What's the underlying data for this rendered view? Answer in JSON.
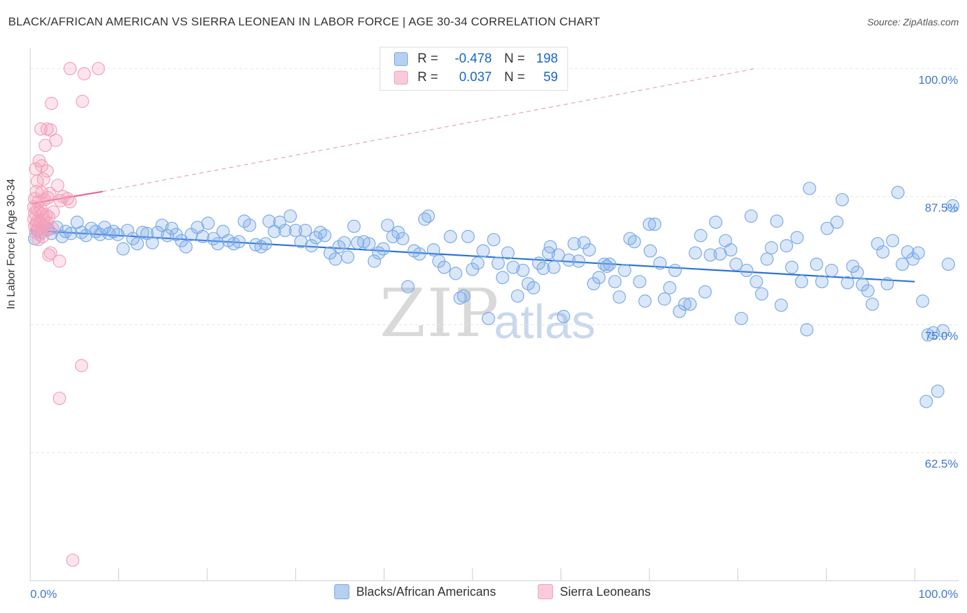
{
  "title": "BLACK/AFRICAN AMERICAN VS SIERRA LEONEAN IN LABOR FORCE | AGE 30-34 CORRELATION CHART",
  "source": "Source: ZipAtlas.com",
  "watermark": {
    "zip": "ZIP",
    "atlas": "atlas"
  },
  "stats": [
    {
      "r_label": "R =",
      "r_value": "-0.478",
      "n_label": "N =",
      "n_value": "198",
      "color": "#7aaae8"
    },
    {
      "r_label": "R =",
      "r_value": "0.037",
      "n_label": "N =",
      "n_value": "59",
      "color": "#f4a0bb"
    }
  ],
  "legend": [
    {
      "label": "Blacks/African Americans",
      "color": "#7aaae8"
    },
    {
      "label": "Sierra Leoneans",
      "color": "#f4a0bb"
    }
  ],
  "chart_data": {
    "type": "scatter",
    "ylabel": "In Labor Force | Age 30-34",
    "xlim": [
      0,
      100
    ],
    "ylim": [
      50,
      102
    ],
    "x_tick_labels": [
      "0.0%",
      "100.0%"
    ],
    "y_tick_values": [
      62.5,
      75.0,
      87.5,
      100.0
    ],
    "y_tick_labels": [
      "62.5%",
      "75.0%",
      "87.5%",
      "100.0%"
    ],
    "grid": true,
    "series": [
      {
        "name": "Blacks/African Americans",
        "color": "#7aaae8",
        "trend": {
          "x": [
            0,
            100
          ],
          "y": [
            84.2,
            79.2
          ],
          "style": "solid",
          "color": "#2a72d4"
        },
        "points": [
          [
            0.5,
            83.4
          ],
          [
            0.8,
            84.2
          ],
          [
            1.2,
            84.0
          ],
          [
            1.5,
            84.6
          ],
          [
            2.0,
            84.3
          ],
          [
            2.4,
            83.9
          ],
          [
            3.0,
            84.5
          ],
          [
            3.6,
            83.6
          ],
          [
            4.0,
            84.1
          ],
          [
            4.6,
            83.9
          ],
          [
            5.3,
            85.0
          ],
          [
            5.8,
            84.0
          ],
          [
            6.3,
            83.7
          ],
          [
            6.9,
            84.4
          ],
          [
            7.4,
            84.1
          ],
          [
            7.9,
            83.8
          ],
          [
            8.4,
            84.5
          ],
          [
            8.9,
            83.9
          ],
          [
            9.4,
            84.1
          ],
          [
            9.9,
            83.8
          ],
          [
            10.5,
            82.4
          ],
          [
            11.0,
            84.2
          ],
          [
            11.6,
            83.4
          ],
          [
            12.1,
            82.9
          ],
          [
            12.7,
            84.0
          ],
          [
            13.2,
            83.9
          ],
          [
            13.8,
            83.0
          ],
          [
            14.4,
            84.0
          ],
          [
            14.9,
            84.7
          ],
          [
            15.5,
            83.7
          ],
          [
            16.0,
            84.4
          ],
          [
            16.5,
            83.8
          ],
          [
            17.1,
            83.2
          ],
          [
            17.6,
            82.6
          ],
          [
            18.2,
            83.8
          ],
          [
            18.9,
            84.5
          ],
          [
            19.5,
            83.6
          ],
          [
            20.1,
            84.9
          ],
          [
            20.7,
            83.4
          ],
          [
            21.2,
            82.9
          ],
          [
            21.8,
            84.1
          ],
          [
            22.4,
            83.2
          ],
          [
            23.0,
            82.9
          ],
          [
            23.6,
            83.1
          ],
          [
            24.2,
            85.1
          ],
          [
            24.8,
            84.7
          ],
          [
            25.5,
            82.8
          ],
          [
            26.1,
            82.6
          ],
          [
            26.6,
            82.9
          ],
          [
            27.0,
            85.1
          ],
          [
            27.6,
            84.1
          ],
          [
            28.2,
            85.0
          ],
          [
            28.8,
            84.2
          ],
          [
            29.4,
            85.6
          ],
          [
            30.0,
            84.2
          ],
          [
            30.6,
            83.1
          ],
          [
            31.1,
            84.2
          ],
          [
            31.8,
            82.7
          ],
          [
            32.3,
            83.5
          ],
          [
            32.8,
            84.0
          ],
          [
            33.3,
            83.7
          ],
          [
            33.9,
            82.0
          ],
          [
            34.5,
            81.4
          ],
          [
            34.9,
            82.6
          ],
          [
            35.5,
            83.0
          ],
          [
            35.9,
            81.6
          ],
          [
            36.6,
            84.6
          ],
          [
            37.0,
            83.0
          ],
          [
            37.7,
            83.1
          ],
          [
            38.3,
            82.9
          ],
          [
            38.9,
            81.2
          ],
          [
            39.4,
            82.0
          ],
          [
            39.9,
            82.4
          ],
          [
            40.4,
            84.7
          ],
          [
            41.0,
            83.6
          ],
          [
            41.6,
            84.0
          ],
          [
            42.1,
            83.4
          ],
          [
            42.7,
            78.7
          ],
          [
            43.4,
            82.2
          ],
          [
            44.0,
            81.9
          ],
          [
            44.6,
            85.3
          ],
          [
            45.0,
            85.6
          ],
          [
            45.6,
            82.3
          ],
          [
            46.2,
            81.2
          ],
          [
            46.8,
            80.6
          ],
          [
            47.5,
            83.6
          ],
          [
            48.1,
            80.0
          ],
          [
            48.6,
            77.6
          ],
          [
            49.0,
            77.8
          ],
          [
            49.5,
            83.6
          ],
          [
            50.0,
            80.4
          ],
          [
            50.6,
            81.0
          ],
          [
            51.2,
            82.2
          ],
          [
            51.8,
            75.6
          ],
          [
            52.4,
            83.3
          ],
          [
            52.9,
            81.0
          ],
          [
            53.4,
            79.6
          ],
          [
            54.0,
            82.0
          ],
          [
            54.6,
            80.6
          ],
          [
            55.1,
            77.8
          ],
          [
            55.7,
            80.3
          ],
          [
            56.3,
            79.0
          ],
          [
            56.9,
            78.6
          ],
          [
            57.5,
            81.0
          ],
          [
            58.0,
            80.5
          ],
          [
            58.6,
            82.0
          ],
          [
            59.2,
            80.6
          ],
          [
            59.7,
            81.8
          ],
          [
            60.3,
            75.8
          ],
          [
            60.9,
            81.3
          ],
          [
            61.5,
            82.9
          ],
          [
            62.0,
            81.2
          ],
          [
            62.6,
            83.0
          ],
          [
            63.2,
            82.3
          ],
          [
            63.7,
            79.0
          ],
          [
            64.3,
            79.6
          ],
          [
            64.9,
            80.9
          ],
          [
            65.5,
            80.9
          ],
          [
            66.1,
            79.2
          ],
          [
            66.6,
            77.7
          ],
          [
            67.2,
            80.3
          ],
          [
            67.8,
            83.4
          ],
          [
            68.3,
            83.1
          ],
          [
            68.9,
            79.2
          ],
          [
            69.5,
            77.3
          ],
          [
            70.1,
            82.2
          ],
          [
            70.6,
            84.8
          ],
          [
            71.2,
            81.0
          ],
          [
            71.7,
            77.5
          ],
          [
            72.3,
            78.6
          ],
          [
            72.9,
            80.3
          ],
          [
            73.4,
            76.3
          ],
          [
            74.0,
            77.0
          ],
          [
            74.6,
            77.0
          ],
          [
            75.2,
            82.0
          ],
          [
            75.8,
            83.7
          ],
          [
            76.3,
            78.2
          ],
          [
            76.9,
            81.8
          ],
          [
            77.5,
            85.0
          ],
          [
            78.0,
            81.9
          ],
          [
            78.6,
            83.2
          ],
          [
            79.2,
            82.3
          ],
          [
            79.8,
            80.9
          ],
          [
            80.4,
            75.6
          ],
          [
            81.0,
            80.3
          ],
          [
            81.5,
            85.6
          ],
          [
            82.1,
            79.2
          ],
          [
            82.7,
            78.0
          ],
          [
            83.3,
            81.4
          ],
          [
            83.8,
            82.5
          ],
          [
            84.4,
            85.1
          ],
          [
            84.9,
            76.9
          ],
          [
            85.5,
            82.7
          ],
          [
            86.1,
            80.6
          ],
          [
            86.7,
            83.5
          ],
          [
            87.2,
            79.2
          ],
          [
            87.8,
            74.5
          ],
          [
            88.1,
            88.3
          ],
          [
            88.9,
            80.9
          ],
          [
            89.5,
            79.2
          ],
          [
            90.1,
            84.4
          ],
          [
            90.6,
            80.3
          ],
          [
            91.2,
            85.0
          ],
          [
            91.8,
            87.2
          ],
          [
            92.4,
            79.1
          ],
          [
            93.0,
            80.7
          ],
          [
            93.5,
            80.1
          ],
          [
            94.1,
            78.9
          ],
          [
            94.7,
            78.3
          ],
          [
            95.2,
            77.0
          ],
          [
            95.8,
            82.9
          ],
          [
            96.4,
            82.1
          ],
          [
            96.9,
            79.0
          ],
          [
            97.5,
            83.2
          ],
          [
            98.1,
            87.9
          ],
          [
            98.6,
            80.9
          ],
          [
            99.2,
            82.1
          ],
          [
            99.8,
            81.4
          ],
          [
            100.4,
            82.0
          ],
          [
            100.9,
            77.3
          ],
          [
            101.5,
            74.0
          ],
          [
            102.1,
            74.2
          ],
          [
            102.6,
            68.5
          ],
          [
            103.2,
            74.4
          ],
          [
            103.8,
            80.9
          ],
          [
            104.3,
            86.6
          ],
          [
            101.3,
            67.5
          ],
          [
            65.2,
            80.7
          ],
          [
            70.0,
            84.8
          ],
          [
            58.8,
            82.6
          ]
        ]
      },
      {
        "name": "Sierra Leoneans",
        "color": "#f4a0bb",
        "trend": {
          "x": [
            0,
            8.2
          ],
          "y": [
            86.8,
            88.0
          ],
          "style": "solid",
          "color": "#e8668f"
        },
        "trend_extension": {
          "x": [
            8.2,
            82.0
          ],
          "y": [
            88.0,
            100.0
          ],
          "style": "dashed",
          "color": "#eaa0b6"
        },
        "points": [
          [
            4.5,
            100.0
          ],
          [
            7.7,
            100.0
          ],
          [
            6.1,
            99.5
          ],
          [
            2.4,
            96.6
          ],
          [
            5.9,
            96.8
          ],
          [
            1.2,
            94.1
          ],
          [
            1.9,
            94.1
          ],
          [
            2.3,
            94.0
          ],
          [
            2.9,
            93.0
          ],
          [
            1.7,
            92.5
          ],
          [
            1.0,
            91.0
          ],
          [
            1.3,
            90.5
          ],
          [
            0.6,
            90.2
          ],
          [
            1.9,
            90.0
          ],
          [
            0.8,
            89.0
          ],
          [
            1.5,
            89.2
          ],
          [
            0.7,
            88.0
          ],
          [
            1.3,
            87.9
          ],
          [
            2.2,
            87.8
          ],
          [
            3.1,
            88.6
          ],
          [
            0.5,
            87.3
          ],
          [
            0.9,
            87.0
          ],
          [
            1.6,
            87.2
          ],
          [
            2.0,
            87.4
          ],
          [
            3.4,
            87.1
          ],
          [
            4.2,
            87.3
          ],
          [
            4.5,
            87.0
          ],
          [
            0.4,
            86.5
          ],
          [
            0.8,
            86.2
          ],
          [
            1.2,
            86.3
          ],
          [
            0.5,
            85.9
          ],
          [
            1.0,
            86.0
          ],
          [
            1.4,
            85.8
          ],
          [
            1.8,
            85.7
          ],
          [
            2.1,
            85.5
          ],
          [
            0.4,
            85.3
          ],
          [
            0.8,
            85.1
          ],
          [
            1.1,
            85.0
          ],
          [
            1.5,
            85.2
          ],
          [
            1.9,
            84.9
          ],
          [
            0.5,
            84.6
          ],
          [
            0.9,
            84.5
          ],
          [
            1.3,
            84.4
          ],
          [
            1.7,
            84.2
          ],
          [
            0.6,
            84.0
          ],
          [
            1.0,
            83.8
          ],
          [
            1.4,
            83.6
          ],
          [
            0.9,
            83.3
          ],
          [
            2.3,
            82.0
          ],
          [
            2.1,
            81.8
          ],
          [
            3.3,
            81.2
          ],
          [
            5.8,
            71.0
          ],
          [
            3.3,
            67.8
          ],
          [
            4.8,
            52.0
          ],
          [
            3.7,
            87.5
          ],
          [
            2.6,
            86.0
          ],
          [
            0.7,
            84.8
          ],
          [
            1.6,
            84.7
          ],
          [
            2.5,
            84.4
          ]
        ]
      }
    ]
  }
}
